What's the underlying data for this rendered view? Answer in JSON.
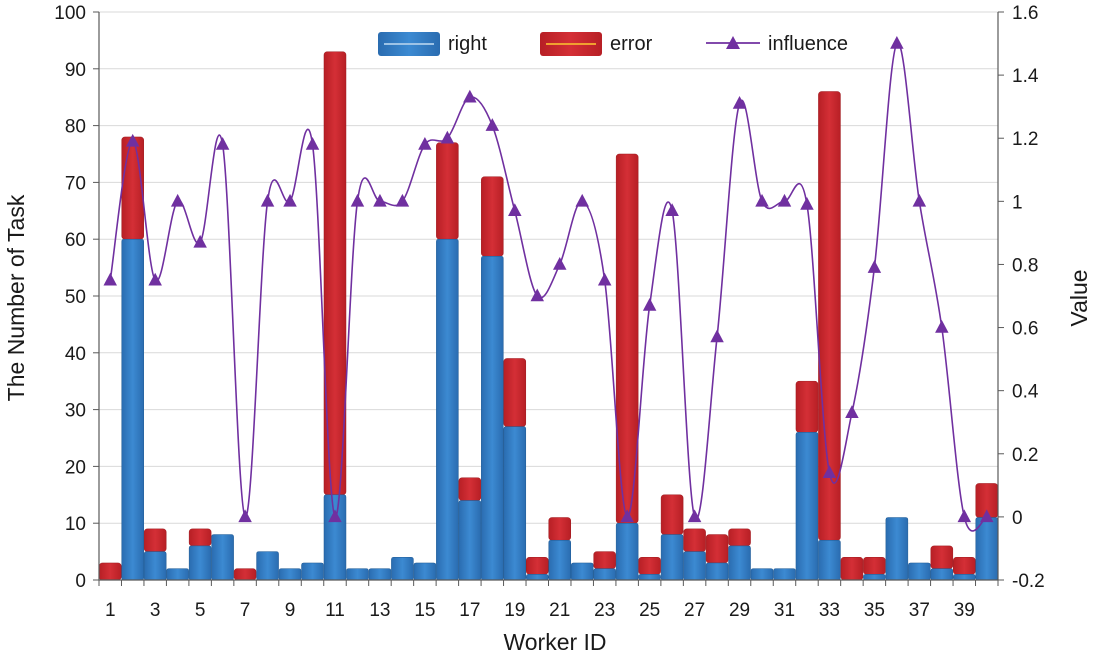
{
  "chart_data": {
    "type": "bar",
    "stacked": true,
    "title": "",
    "xlabel": "Worker ID",
    "ylabel": "The Number of Task",
    "y2label": "Value",
    "ylim": [
      0,
      100
    ],
    "y2lim": [
      -0.2,
      1.6
    ],
    "yticks": [
      0,
      10,
      20,
      30,
      40,
      50,
      60,
      70,
      80,
      90,
      100
    ],
    "y2ticks": [
      "-0.2",
      "0",
      "0.2",
      "0.4",
      "0.6",
      "0.8",
      "1",
      "1.2",
      "1.4",
      "1.6"
    ],
    "y2tick_values": [
      -0.2,
      0,
      0.2,
      0.4,
      0.6,
      0.8,
      1,
      1.2,
      1.4,
      1.6
    ],
    "categories": [
      1,
      2,
      3,
      4,
      5,
      6,
      7,
      8,
      9,
      10,
      11,
      12,
      13,
      14,
      15,
      16,
      17,
      18,
      19,
      20,
      21,
      22,
      23,
      24,
      25,
      26,
      27,
      28,
      29,
      30,
      31,
      32,
      33,
      34,
      35,
      36,
      37,
      38,
      39,
      40
    ],
    "xtick_labels": [
      "1",
      "3",
      "5",
      "7",
      "9",
      "11",
      "13",
      "15",
      "17",
      "19",
      "21",
      "23",
      "25",
      "27",
      "29",
      "31",
      "33",
      "35",
      "37",
      "39"
    ],
    "legend_position": "top-center",
    "series": [
      {
        "name": "right",
        "kind": "bar",
        "color": "#2e75b6",
        "values": [
          0,
          60,
          5,
          2,
          6,
          8,
          0,
          5,
          2,
          3,
          15,
          2,
          2,
          4,
          3,
          60,
          14,
          57,
          27,
          1,
          7,
          3,
          2,
          10,
          1,
          8,
          5,
          3,
          6,
          2,
          2,
          26,
          7,
          0,
          1,
          11,
          3,
          2,
          1,
          11
        ]
      },
      {
        "name": "error",
        "kind": "bar",
        "color": "#c0272d",
        "values": [
          3,
          18,
          4,
          0,
          3,
          0,
          2,
          0,
          0,
          0,
          78,
          0,
          0,
          0,
          0,
          17,
          4,
          14,
          12,
          3,
          4,
          0,
          3,
          65,
          3,
          7,
          4,
          5,
          3,
          0,
          0,
          9,
          79,
          4,
          3,
          0,
          0,
          4,
          3,
          6
        ]
      },
      {
        "name": "influence",
        "kind": "line",
        "axis": "right",
        "color": "#7030a0",
        "values": [
          0.75,
          1.19,
          0.75,
          1.0,
          0.87,
          1.18,
          0.0,
          1.0,
          1.0,
          1.18,
          0.0,
          1.0,
          1.0,
          1.0,
          1.18,
          1.2,
          1.33,
          1.24,
          0.97,
          0.7,
          0.8,
          1.0,
          0.75,
          0.0,
          0.67,
          0.97,
          0.0,
          0.57,
          1.31,
          1.0,
          1.0,
          0.99,
          0.14,
          0.33,
          0.79,
          1.5,
          1.0,
          0.6,
          0.0,
          0.0
        ]
      }
    ]
  }
}
